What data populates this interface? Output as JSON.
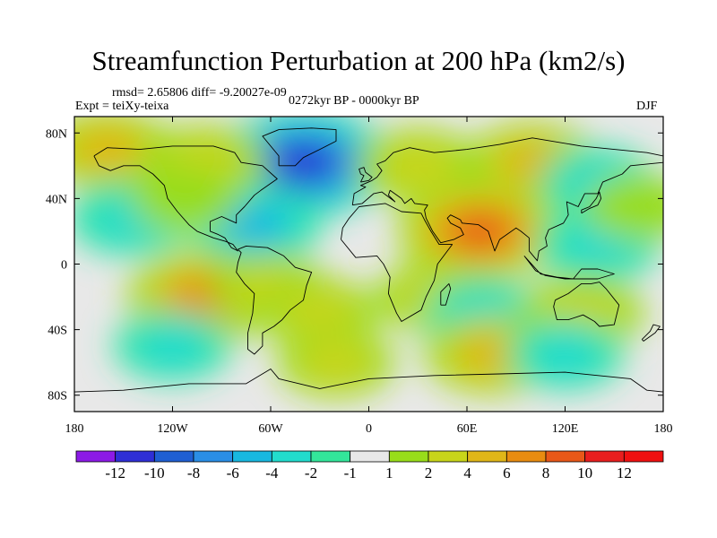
{
  "chart_data": {
    "type": "heatmap",
    "title": "Streamfunction Perturbation at 200 hPa (km2/s)",
    "stats": "rmsd= 2.65806 diff= -9.20027e-09",
    "experiment": "Expt = teiXy-teixa",
    "period": "0272kyr BP - 0000kyr BP",
    "season": "DJF",
    "x_ticks": [
      "180",
      "120W",
      "60W",
      "0",
      "60E",
      "120E",
      "180"
    ],
    "x_values": [
      -180,
      -120,
      -60,
      0,
      60,
      120,
      180
    ],
    "y_ticks": [
      "80N",
      "40N",
      "0",
      "40S",
      "80S"
    ],
    "y_values": [
      80,
      40,
      0,
      -40,
      -80
    ],
    "xlim": [
      -180,
      180
    ],
    "ylim": [
      -90,
      90
    ],
    "colorbar": {
      "labels": [
        "-12",
        "-10",
        "-8",
        "-6",
        "-4",
        "-2",
        "-1",
        "1",
        "2",
        "4",
        "6",
        "8",
        "10",
        "12"
      ],
      "levels": [
        -12,
        -10,
        -8,
        -6,
        -4,
        -2,
        -1,
        1,
        2,
        4,
        6,
        8,
        10,
        12
      ],
      "colors": [
        "#8c1ae6",
        "#2f2fd6",
        "#1f5fd2",
        "#2a8ee6",
        "#18b8e0",
        "#22dccd",
        "#33e69a",
        "#e8e8e8",
        "#98dd1a",
        "#c8d51a",
        "#e0b618",
        "#e88c10",
        "#e85818",
        "#e81e1e",
        "#f01010"
      ]
    },
    "anomaly_centers": [
      {
        "name": "North Atlantic low",
        "lon": -40,
        "lat": 62,
        "value": -11
      },
      {
        "name": "North Pacific high",
        "lon": -160,
        "lat": 70,
        "value": 5
      },
      {
        "name": "North America high",
        "lon": -100,
        "lat": 62,
        "value": 4
      },
      {
        "name": "Europe high",
        "lon": 30,
        "lat": 60,
        "value": 4
      },
      {
        "name": "Siberia high",
        "lon": 100,
        "lat": 62,
        "value": 5
      },
      {
        "name": "NE Pacific low",
        "lon": -145,
        "lat": 28,
        "value": -4
      },
      {
        "name": "Caribbean low",
        "lon": -70,
        "lat": 24,
        "value": -5
      },
      {
        "name": "Eastern North Pacific high",
        "lon": -112,
        "lat": 40,
        "value": 2
      },
      {
        "name": "South Asia high",
        "lon": 68,
        "lat": 20,
        "value": 9
      },
      {
        "name": "Tropical West Pacific low",
        "lon": 140,
        "lat": 12,
        "value": -4
      },
      {
        "name": "East Asia low",
        "lon": 140,
        "lat": 50,
        "value": -3
      },
      {
        "name": "Western Pacific high",
        "lon": 165,
        "lat": 35,
        "value": 2
      },
      {
        "name": "SE Pacific high",
        "lon": -100,
        "lat": -20,
        "value": 8
      },
      {
        "name": "South America high",
        "lon": -60,
        "lat": -15,
        "value": 3
      },
      {
        "name": "South Atlantic high",
        "lon": -30,
        "lat": -30,
        "value": 3
      },
      {
        "name": "Southern Africa high",
        "lon": 40,
        "lat": -20,
        "value": 3
      },
      {
        "name": "South Indian low",
        "lon": 70,
        "lat": -30,
        "value": -3
      },
      {
        "name": "Indian Ocean high",
        "lon": 75,
        "lat": -55,
        "value": 5
      },
      {
        "name": "Australia high",
        "lon": 130,
        "lat": -30,
        "value": 4
      },
      {
        "name": "South Pacific low",
        "lon": 120,
        "lat": -55,
        "value": -3
      },
      {
        "name": "Southern Ocean high",
        "lon": -20,
        "lat": -60,
        "value": 3
      },
      {
        "name": "Pacific sector low",
        "lon": -120,
        "lat": -50,
        "value": -3
      }
    ]
  }
}
